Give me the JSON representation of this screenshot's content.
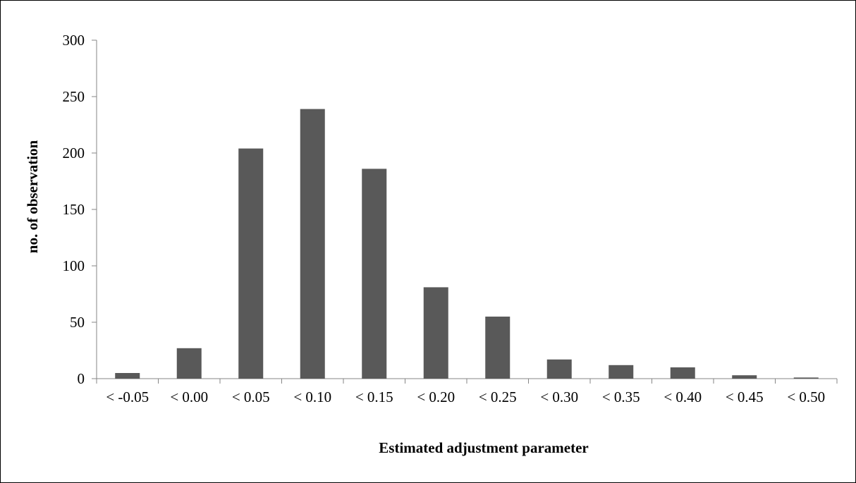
{
  "chart_data": {
    "type": "bar",
    "title": "",
    "xlabel": "Estimated adjustment parameter",
    "ylabel": "no. of observation",
    "categories": [
      "< -0.05",
      "< 0.00",
      "< 0.05",
      "< 0.10",
      "< 0.15",
      "< 0.20",
      "< 0.25",
      "< 0.30",
      "< 0.35",
      "< 0.40",
      "< 0.45",
      "< 0.50"
    ],
    "values": [
      5,
      27,
      204,
      239,
      186,
      81,
      55,
      17,
      12,
      10,
      3,
      1
    ],
    "ylim": [
      0,
      300
    ],
    "yticks": [
      0,
      50,
      100,
      150,
      200,
      250,
      300
    ],
    "grid": false,
    "legend": "none",
    "bar_color": "#595959"
  }
}
